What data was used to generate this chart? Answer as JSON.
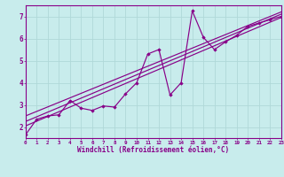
{
  "xlabel": "Windchill (Refroidissement éolien,°C)",
  "bg_color": "#c8ecec",
  "grid_color": "#b0d8d8",
  "line_color": "#880088",
  "xlim": [
    0,
    23
  ],
  "ylim": [
    1.5,
    7.5
  ],
  "yticks": [
    2,
    3,
    4,
    5,
    6,
    7
  ],
  "xticks": [
    0,
    1,
    2,
    3,
    4,
    5,
    6,
    7,
    8,
    9,
    10,
    11,
    12,
    13,
    14,
    15,
    16,
    17,
    18,
    19,
    20,
    21,
    22,
    23
  ],
  "zigzag_x": [
    0,
    1,
    2,
    3,
    4,
    5,
    6,
    7,
    8,
    9,
    10,
    11,
    12,
    13,
    14,
    15,
    16,
    17,
    18,
    19,
    20,
    21,
    22,
    23
  ],
  "zigzag_y": [
    1.65,
    2.35,
    2.5,
    2.55,
    3.2,
    2.85,
    2.75,
    2.95,
    2.9,
    3.5,
    4.0,
    5.3,
    5.5,
    3.45,
    4.0,
    7.25,
    6.05,
    5.5,
    5.85,
    6.15,
    6.55,
    6.7,
    6.85,
    7.0
  ],
  "line1_x": [
    0,
    23
  ],
  "line1_y": [
    2.05,
    6.95
  ],
  "line2_x": [
    0,
    23
  ],
  "line2_y": [
    2.25,
    7.1
  ],
  "line3_x": [
    0,
    23
  ],
  "line3_y": [
    2.5,
    7.2
  ]
}
